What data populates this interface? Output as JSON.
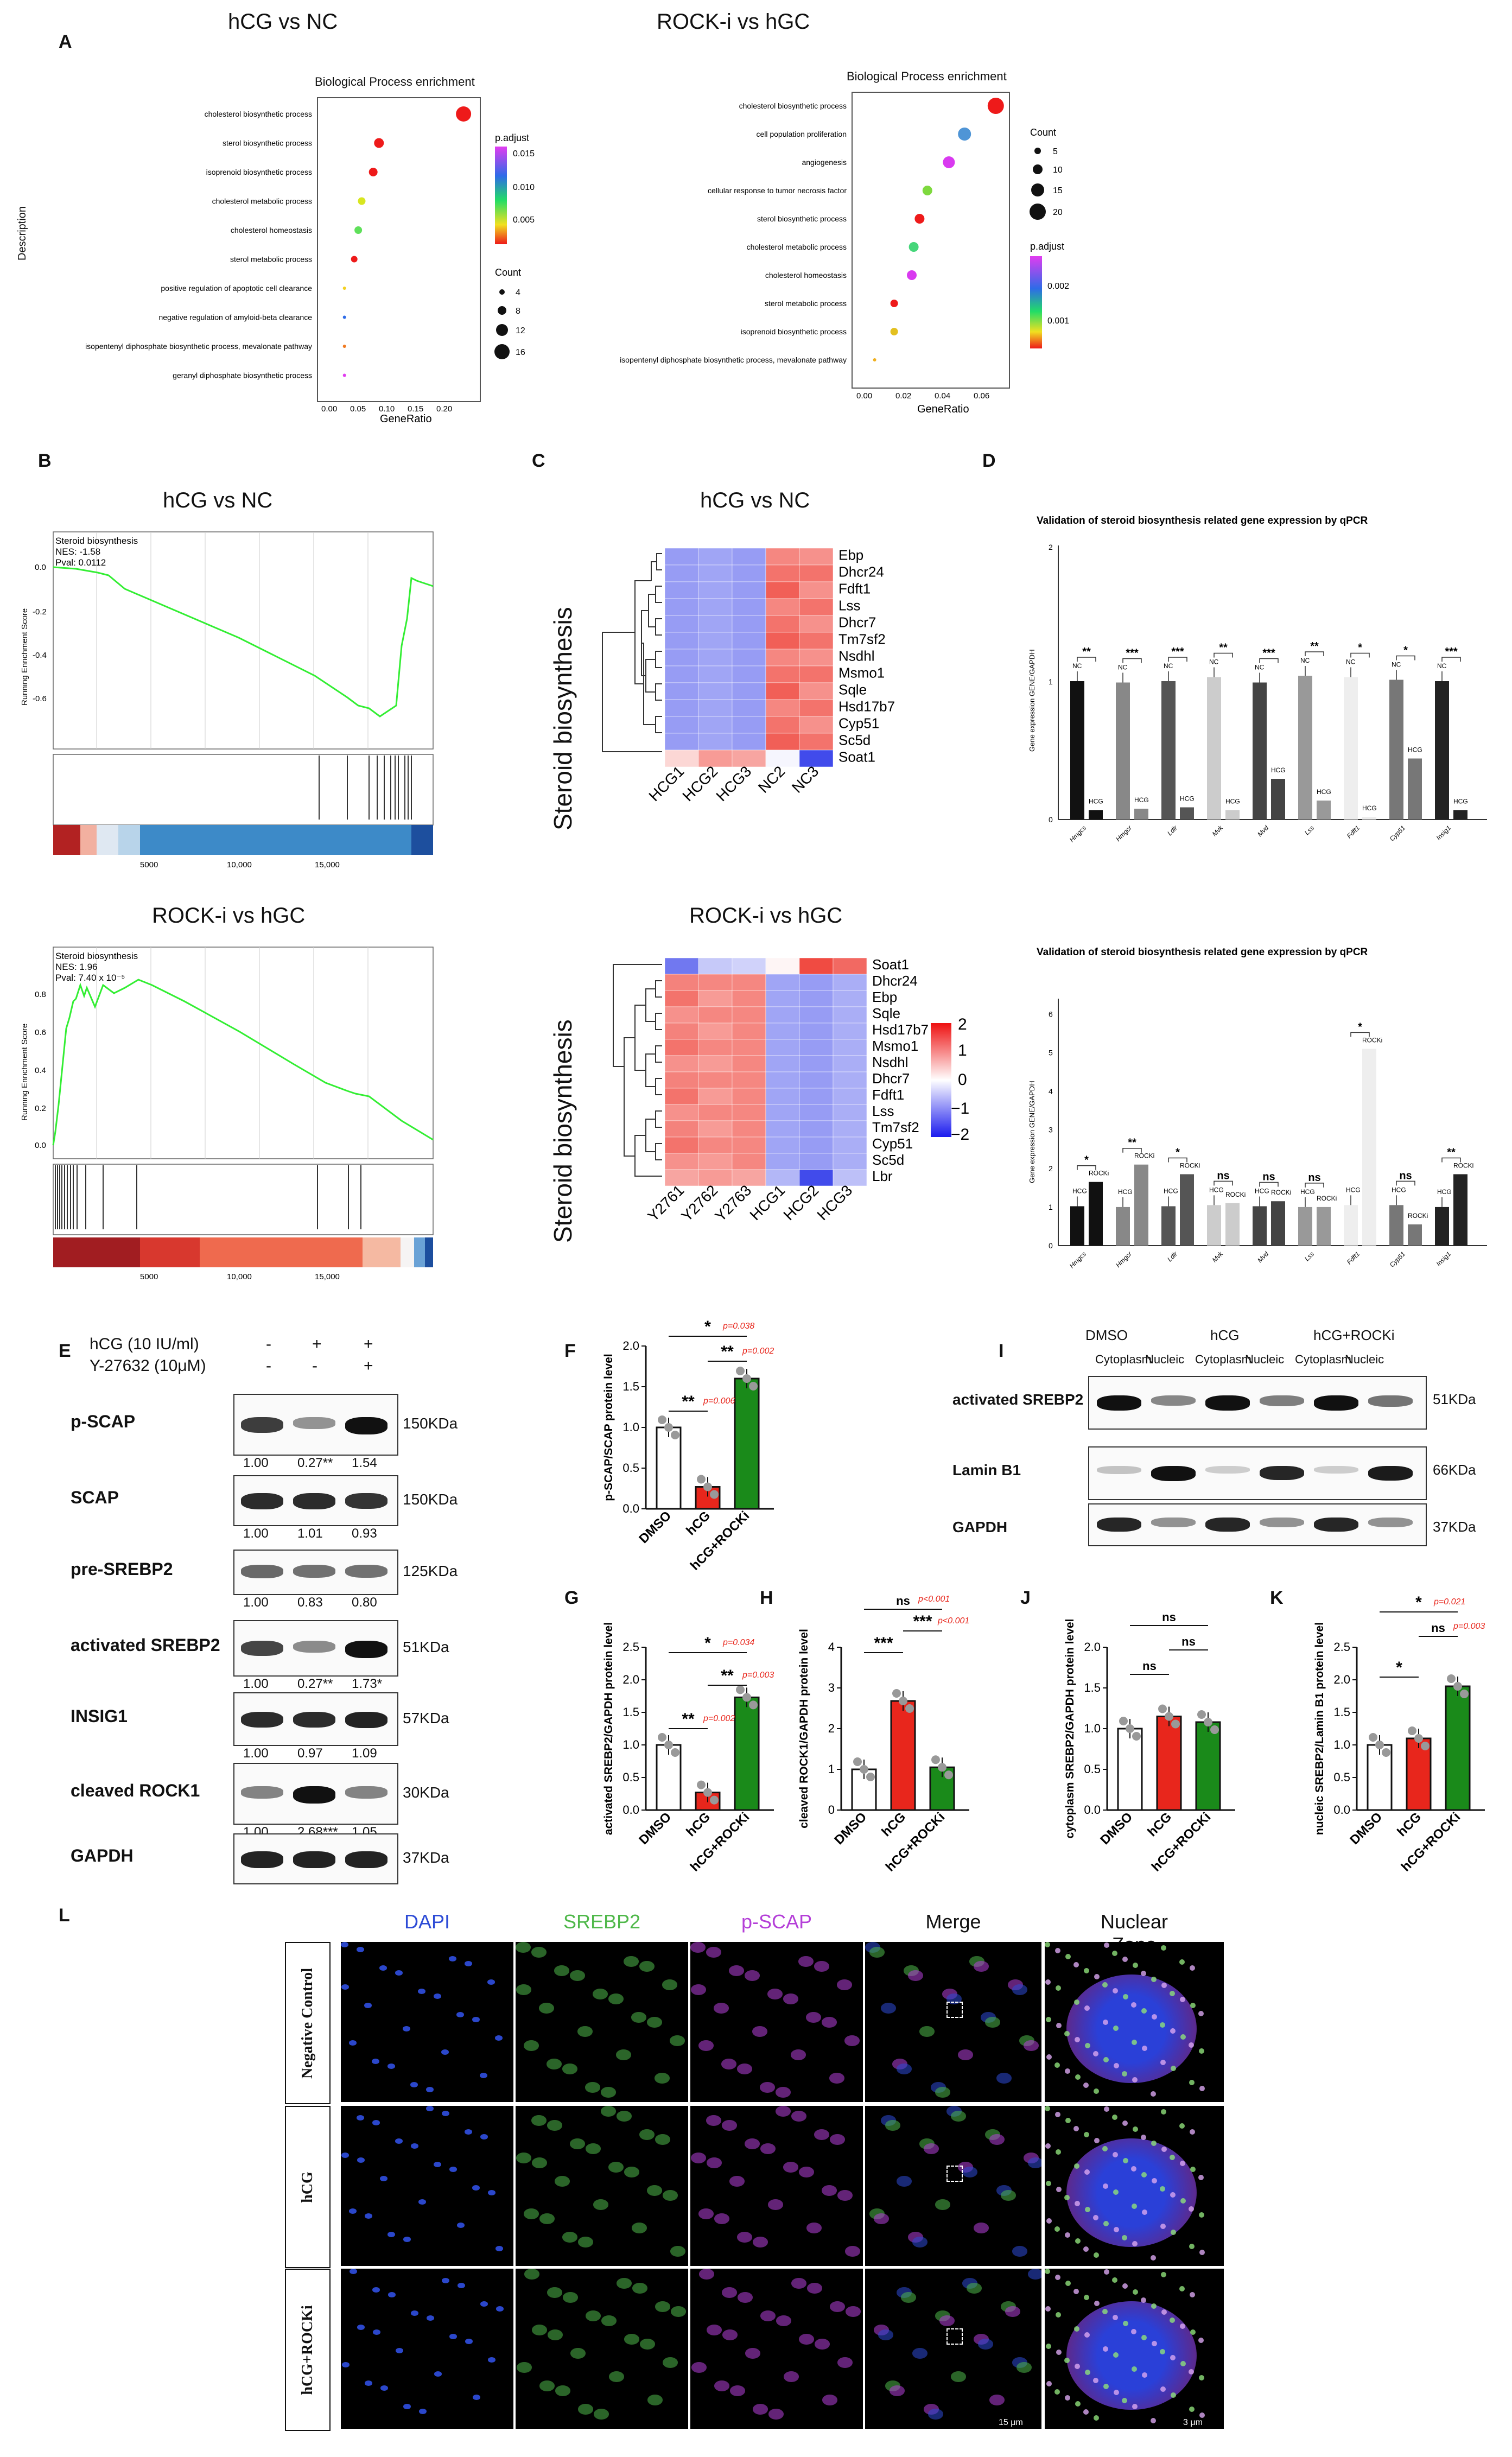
{
  "panels": {
    "A": "A",
    "B": "B",
    "C": "C",
    "D": "D",
    "E": "E",
    "F": "F",
    "G": "G",
    "H": "H",
    "I": "I",
    "J": "J",
    "K": "K",
    "L": "L"
  },
  "A": {
    "left": {
      "title": "hCG vs NC",
      "subtitle": "Biological Process enrichment",
      "ylabel": "Description",
      "xlabel": "GeneRatio",
      "xticks": [
        "0.00",
        "0.05",
        "0.10",
        "0.15",
        "0.20"
      ],
      "terms": [
        "cholesterol biosynthetic process",
        "sterol biosynthetic process",
        "isoprenoid biosynthetic process",
        "cholesterol metabolic process",
        "cholesterol homeostasis",
        "sterol metabolic process",
        "positive regulation of apoptotic cell clearance",
        "negative regulation of amyloid-beta clearance",
        "isopentenyl diphosphate biosynthetic process, mevalonate pathway",
        "geranyl diphosphate biosynthetic process"
      ],
      "legend_padj": {
        "title": "p.adjust",
        "ticks": [
          "0.015",
          "0.010",
          "0.005"
        ]
      },
      "legend_count": {
        "title": "Count",
        "ticks": [
          "4",
          "8",
          "12",
          "16"
        ]
      }
    },
    "right": {
      "title": "ROCK-i vs hGC",
      "subtitle": "Biological Process enrichment",
      "xlabel": "GeneRatio",
      "xticks": [
        "0.00",
        "0.02",
        "0.04",
        "0.06"
      ],
      "terms": [
        "cholesterol biosynthetic process",
        "cell population proliferation",
        "angiogenesis",
        "cellular response to tumor necrosis factor",
        "sterol biosynthetic process",
        "cholesterol metabolic process",
        "cholesterol homeostasis",
        "sterol metabolic process",
        "isoprenoid biosynthetic process",
        "isopentenyl diphosphate biosynthetic process, mevalonate pathway"
      ],
      "legend_count": {
        "title": "Count",
        "ticks": [
          "5",
          "10",
          "15",
          "20"
        ]
      },
      "legend_padj": {
        "title": "p.adjust",
        "ticks": [
          "0.002",
          "0.001"
        ]
      }
    }
  },
  "B": {
    "top": {
      "title": "hCG vs NC",
      "set": "Steroid biosynthesis",
      "nes": "NES: -1.58",
      "pval": "Pval: 0.0112",
      "ylabel": "Running Enrichment Score",
      "yticks": [
        "0.0",
        "-0.2",
        "-0.4",
        "-0.6"
      ],
      "xticks": [
        "5000",
        "10,000",
        "15,000"
      ]
    },
    "bottom": {
      "title": "ROCK-i vs hGC",
      "set": "Steroid biosynthesis",
      "nes": "NES: 1.96",
      "pval": "Pval: 7.40 x 10⁻⁵",
      "ylabel": "Running Enrichment Score",
      "yticks": [
        "0.8",
        "0.6",
        "0.4",
        "0.2",
        "0.0"
      ],
      "xticks": [
        "5000",
        "10,000",
        "15,000"
      ]
    }
  },
  "C": {
    "top": {
      "title": "hCG vs NC",
      "side": "Steroid biosynthesis",
      "genes": [
        "Ebp",
        "Dhcr24",
        "Fdft1",
        "Lss",
        "Dhcr7",
        "Tm7sf2",
        "Nsdhl",
        "Msmo1",
        "Sqle",
        "Hsd17b7",
        "Cyp51",
        "Sc5d",
        "Soat1"
      ],
      "samples": [
        "HCG1",
        "HCG2",
        "HCG3",
        "NC2",
        "NC3"
      ]
    },
    "bottom": {
      "title": "ROCK-i vs hGC",
      "side": "Steroid biosynthesis",
      "genes": [
        "Soat1",
        "Dhcr24",
        "Ebp",
        "Sqle",
        "Hsd17b7",
        "Msmo1",
        "Nsdhl",
        "Dhcr7",
        "Fdft1",
        "Lss",
        "Tm7sf2",
        "Cyp51",
        "Sc5d",
        "Lbr"
      ],
      "samples": [
        "Y2761",
        "Y2762",
        "Y2763",
        "HCG1",
        "HCG2",
        "HCG3"
      ],
      "scale": [
        "2",
        "1",
        "0",
        "−1",
        "−2"
      ]
    }
  },
  "D": {
    "top": {
      "title": "Validation of steroid biosynthesis related gene expression by qPCR",
      "ylabel": "Gene expression GENE/GAPDH",
      "yticks": [
        "2",
        "1",
        "0"
      ],
      "genes": [
        "Hmgcs",
        "Hmgcr",
        "Ldlr",
        "Mvk",
        "Mvd",
        "Lss",
        "Fdft1",
        "Cyp51",
        "Insig1"
      ],
      "sig": [
        "**",
        "***",
        "***",
        "**",
        "***",
        "**",
        "*",
        "*",
        "***"
      ],
      "g1": "NC",
      "g2": "HCG"
    },
    "bottom": {
      "title": "Validation of steroid biosynthesis related gene expression by qPCR",
      "ylabel": "Gene expression GENE/GAPDH",
      "yticks": [
        "6",
        "5",
        "4",
        "3",
        "2",
        "1",
        "0"
      ],
      "genes": [
        "Hmgcs",
        "Hmgcr",
        "Ldlr",
        "Mvk",
        "Mvd",
        "Lss",
        "Fdft1",
        "Cyp51",
        "Insig1"
      ],
      "sig": [
        "*",
        "**",
        "*",
        "ns",
        "ns",
        "ns",
        "*",
        "ns",
        "**"
      ],
      "g1": "HCG",
      "g2": "ROCKi"
    }
  },
  "E": {
    "cond1": "hCG (10 IU/ml)",
    "cond2": "Y-27632 (10μM)",
    "signs1": [
      "-",
      "+",
      "+"
    ],
    "signs2": [
      "-",
      "-",
      "+"
    ],
    "rows": [
      {
        "name": "p-SCAP",
        "kda": "150KDa",
        "vals": [
          "1.00",
          "0.27**",
          "1.54"
        ]
      },
      {
        "name": "SCAP",
        "kda": "150KDa",
        "vals": [
          "1.00",
          "1.01",
          "0.93"
        ]
      },
      {
        "name": "pre-SREBP2",
        "kda": "125KDa",
        "vals": [
          "1.00",
          "0.83",
          "0.80"
        ]
      },
      {
        "name": "activated SREBP2",
        "kda": "51KDa",
        "vals": [
          "1.00",
          "0.27**",
          "1.73*"
        ]
      },
      {
        "name": "INSIG1",
        "kda": "57KDa",
        "vals": [
          "1.00",
          "0.97",
          "1.09"
        ]
      },
      {
        "name": "cleaved ROCK1",
        "kda": "30KDa",
        "vals": [
          "1.00",
          "2.68***",
          "1.05"
        ]
      },
      {
        "name": "GAPDH",
        "kda": "37KDa",
        "vals": []
      }
    ]
  },
  "F": {
    "ylabel": "p-SCAP/SCAP protein level",
    "yticks": [
      "2.0",
      "1.5",
      "1.0",
      "0.5",
      "0.0"
    ],
    "categories": [
      "DMSO",
      "hCG",
      "hCG+ROCKi"
    ],
    "values": [
      1.0,
      0.27,
      1.6
    ],
    "sig": [
      "*",
      "**",
      "**"
    ],
    "p": [
      "p=0.038",
      "p=0.002",
      "p=0.006"
    ]
  },
  "G": {
    "ylabel": "activated SREBP2/GAPDH protein level",
    "yticks": [
      "2.5",
      "2.0",
      "1.5",
      "1.0",
      "0.5",
      "0.0"
    ],
    "categories": [
      "DMSO",
      "hCG",
      "hCG+ROCKi"
    ],
    "values": [
      1.0,
      0.27,
      1.73
    ],
    "sig": [
      "*",
      "**",
      "**"
    ],
    "p": [
      "p=0.034",
      "p=0.003",
      "p=0.002"
    ]
  },
  "H": {
    "ylabel": "cleaved ROCK1/GAPDH protein level",
    "yticks": [
      "4",
      "3",
      "2",
      "1",
      "0"
    ],
    "categories": [
      "DMSO",
      "hCG",
      "hCG+ROCKi"
    ],
    "values": [
      1.0,
      2.68,
      1.05
    ],
    "sig": [
      "ns",
      "***",
      "***"
    ],
    "p": [
      "p<0.001",
      "p<0.001"
    ]
  },
  "I": {
    "groups": [
      "DMSO",
      "hCG",
      "hCG+ROCKi"
    ],
    "fractions": [
      "Cytoplasm",
      "Nucleic",
      "Cytoplasm",
      "Nucleic",
      "Cytoplasm",
      "Nucleic"
    ],
    "rows": [
      {
        "name": "activated SREBP2",
        "kda": "51KDa"
      },
      {
        "name": "Lamin B1",
        "kda": "66KDa"
      },
      {
        "name": "GAPDH",
        "kda": "37KDa"
      }
    ]
  },
  "J": {
    "ylabel": "cytoplasm SREBP2/GAPDH protein level",
    "yticks": [
      "2.0",
      "1.5",
      "1.0",
      "0.5",
      "0.0"
    ],
    "categories": [
      "DMSO",
      "hCG",
      "hCG+ROCKi"
    ],
    "values": [
      1.0,
      1.15,
      1.08
    ],
    "sig": [
      "ns",
      "ns",
      "ns"
    ]
  },
  "K": {
    "ylabel": "nucleic SREBP2/Lamin B1 protein level",
    "yticks": [
      "2.5",
      "2.0",
      "1.5",
      "1.0",
      "0.5",
      "0.0"
    ],
    "categories": [
      "DMSO",
      "hCG",
      "hCG+ROCKi"
    ],
    "values": [
      1.0,
      1.1,
      1.9
    ],
    "sig": [
      "*",
      "ns",
      "*"
    ],
    "p": [
      "p=0.021",
      "p=0.003"
    ]
  },
  "L": {
    "columns": [
      "DAPI",
      "SREBP2",
      "p-SCAP",
      "Merge",
      "Nuclear Zone"
    ],
    "rows": [
      "Negative Control",
      "hCG",
      "hCG+ROCKi"
    ],
    "scale1": "15 μm",
    "scale2": "3 μm"
  },
  "colors": {
    "ctrl": "#ffffff",
    "hcg": "#e8261c",
    "rocki": "#1a8a1a",
    "gsea": "#33ee33",
    "heat_hi": "#e8432a",
    "heat_lo": "#6e5cf0",
    "dapi": "#2d4bd6",
    "srebp2": "#4fb84a",
    "pscap": "#b43fd8"
  }
}
